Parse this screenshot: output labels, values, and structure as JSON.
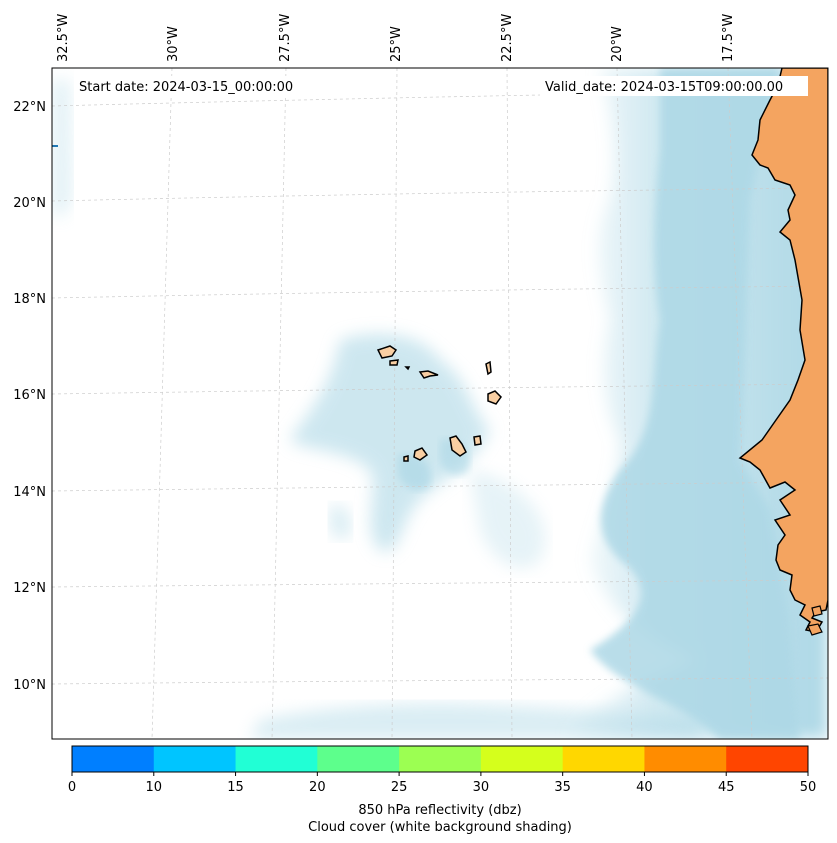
{
  "header": {
    "start_date": "Start date: 2024-03-15_00:00:00",
    "valid_date": "Valid_date: 2024-03-15T09:00:00.00"
  },
  "longitude_labels": [
    "32.5°W",
    "30°W",
    "27.5°W",
    "25°W",
    "22.5°W",
    "20°W",
    "17.5°W"
  ],
  "latitude_labels": [
    "22°N",
    "20°N",
    "18°N",
    "16°N",
    "14°N",
    "12°N",
    "10°N"
  ],
  "colorbar": {
    "ticks": [
      "0",
      "10",
      "15",
      "20",
      "25",
      "30",
      "35",
      "40",
      "45",
      "50"
    ],
    "colors": [
      "#007fff",
      "#00c5ff",
      "#21ffd5",
      "#5dff8c",
      "#9cff52",
      "#d5ff1c",
      "#ffd700",
      "#ff8c00",
      "#ff4500"
    ],
    "label": "850 hPa reflectivity (dbz)",
    "sublabel": "Cloud cover (white background shading)"
  },
  "colors": {
    "land": "#f4a460",
    "cloud": "#add8e6",
    "coast": "#000000",
    "grid": "#cccccc"
  }
}
